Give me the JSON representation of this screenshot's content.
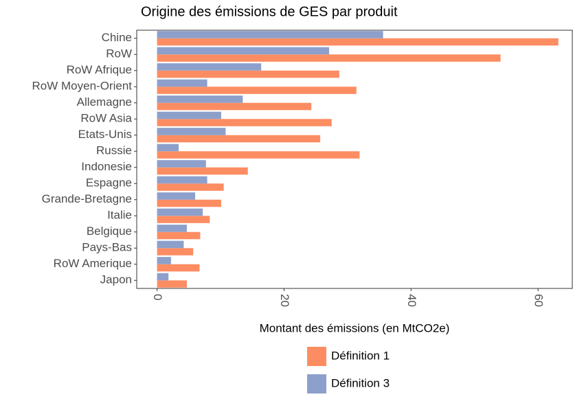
{
  "chart_data": {
    "type": "hbar",
    "title": "Origine des émissions de GES par produit",
    "x_label": "Montant des émissions (en MtCO2e)",
    "categories": [
      "Chine",
      "RoW",
      "RoW Afrique",
      "RoW Moyen-Orient",
      "Allemagne",
      "RoW Asia",
      "Etats-Unis",
      "Russie",
      "Indonesie",
      "Espagne",
      "Grande-Bretagne",
      "Italie",
      "Belgique",
      "Pays-Bas",
      "RoW Amerique",
      "Japon"
    ],
    "series": [
      {
        "name": "Définition 1",
        "color": "#fc8d62",
        "values": [
          63.2,
          54.1,
          28.7,
          31.4,
          24.3,
          27.5,
          25.7,
          31.9,
          14.3,
          10.5,
          10.1,
          8.3,
          6.8,
          5.7,
          6.7,
          4.7
        ]
      },
      {
        "name": "Définition 3",
        "color": "#8da0cb",
        "values": [
          35.6,
          27.1,
          16.4,
          7.9,
          13.5,
          10.1,
          10.8,
          3.4,
          7.7,
          7.9,
          6.0,
          7.2,
          4.7,
          4.2,
          2.2,
          1.8
        ]
      }
    ],
    "xlim": [
      -3.2,
      65.4
    ],
    "xticks": [
      0,
      20,
      40,
      60
    ],
    "legend": "bottom"
  }
}
